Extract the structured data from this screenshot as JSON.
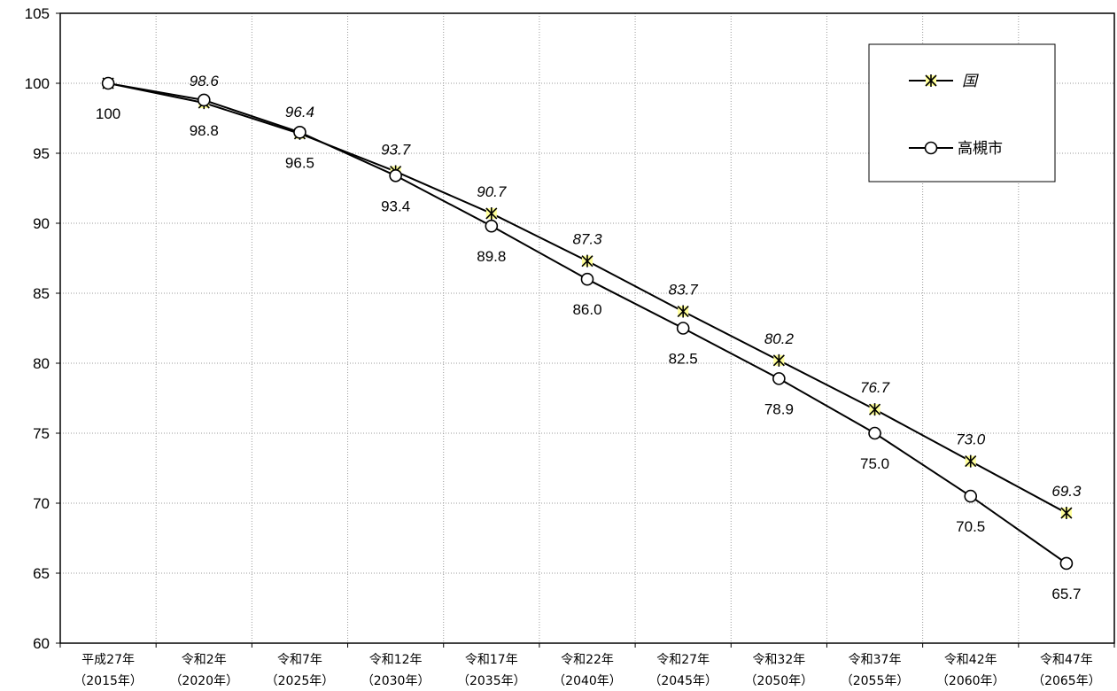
{
  "chart_data": {
    "type": "line",
    "title": "",
    "xlabel": "",
    "ylabel": "",
    "ylim": [
      60,
      105
    ],
    "yticks": [
      60,
      65,
      70,
      75,
      80,
      85,
      90,
      95,
      100,
      105
    ],
    "grid": "vertical dotted lines between categories, horizontal dotted gridlines",
    "legend_position": "top-right",
    "categories": [
      [
        "平成27年",
        "（2015年）"
      ],
      [
        "令和2年",
        "（2020年）"
      ],
      [
        "令和7年",
        "（2025年）"
      ],
      [
        "令和12年",
        "（2030年）"
      ],
      [
        "令和17年",
        "（2035年）"
      ],
      [
        "令和22年",
        "（2040年）"
      ],
      [
        "令和27年",
        "（2045年）"
      ],
      [
        "令和32年",
        "（2050年）"
      ],
      [
        "令和37年",
        "（2055年）"
      ],
      [
        "令和42年",
        "（2060年）"
      ],
      [
        "令和47年",
        "（2065年）"
      ]
    ],
    "series": [
      {
        "name": "国",
        "marker": "star",
        "label_style": "italic",
        "values": [
          100,
          98.6,
          96.4,
          93.7,
          90.7,
          87.3,
          83.7,
          80.2,
          76.7,
          73.0,
          69.3
        ],
        "labels": [
          "",
          "98.6",
          "96.4",
          "93.7",
          "90.7",
          "87.3",
          "83.7",
          "80.2",
          "76.7",
          "73.0",
          "69.3"
        ]
      },
      {
        "name": "高槻市",
        "marker": "circle",
        "label_style": "normal",
        "values": [
          100,
          98.8,
          96.5,
          93.4,
          89.8,
          86.0,
          82.5,
          78.9,
          75.0,
          70.5,
          65.7
        ],
        "labels": [
          "100",
          "98.8",
          "96.5",
          "93.4",
          "89.8",
          "86.0",
          "82.5",
          "78.9",
          "75.0",
          "70.5",
          "65.7"
        ]
      }
    ],
    "colors": {
      "line": "#000000",
      "star_fill": "#ffff99",
      "grid": "#999999"
    }
  }
}
